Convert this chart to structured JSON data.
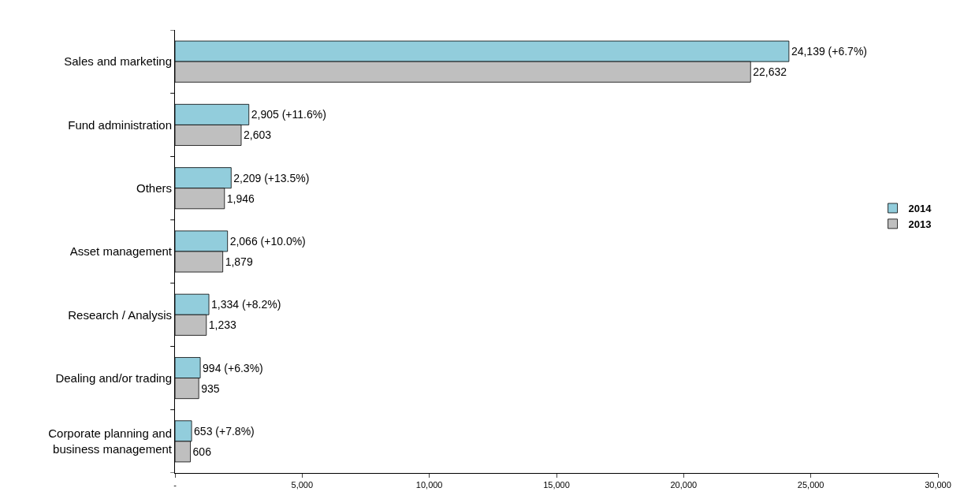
{
  "chart_data": {
    "type": "bar",
    "orientation": "horizontal",
    "categories": [
      "Sales and marketing",
      "Fund administration",
      "Others",
      "Asset management",
      "Research / Analysis",
      "Dealing and/or trading",
      "Corporate planning and business management"
    ],
    "series": [
      {
        "name": "2014",
        "color": "#92cddc",
        "values": [
          24139,
          2905,
          2209,
          2066,
          1334,
          994,
          653
        ],
        "value_labels": [
          "24,139 (+6.7%)",
          "2,905 (+11.6%)",
          "2,209 (+13.5%)",
          "2,066 (+10.0%)",
          "1,334 (+8.2%)",
          "994 (+6.3%)",
          "653 (+7.8%)"
        ]
      },
      {
        "name": "2013",
        "color": "#bfbfbf",
        "values": [
          22632,
          2603,
          1946,
          1879,
          1233,
          935,
          606
        ],
        "value_labels": [
          "22,632",
          "2,603",
          "1,946",
          "1,879",
          "1,233",
          "935",
          "606"
        ]
      }
    ],
    "xlim": [
      0,
      30000
    ],
    "xticks": [
      {
        "value": 0,
        "label": "-"
      },
      {
        "value": 5000,
        "label": "5,000"
      },
      {
        "value": 10000,
        "label": "10,000"
      },
      {
        "value": 15000,
        "label": "15,000"
      },
      {
        "value": 20000,
        "label": "20,000"
      },
      {
        "value": 25000,
        "label": "25,000"
      },
      {
        "value": 30000,
        "label": "30,000"
      }
    ],
    "legend": "right"
  }
}
